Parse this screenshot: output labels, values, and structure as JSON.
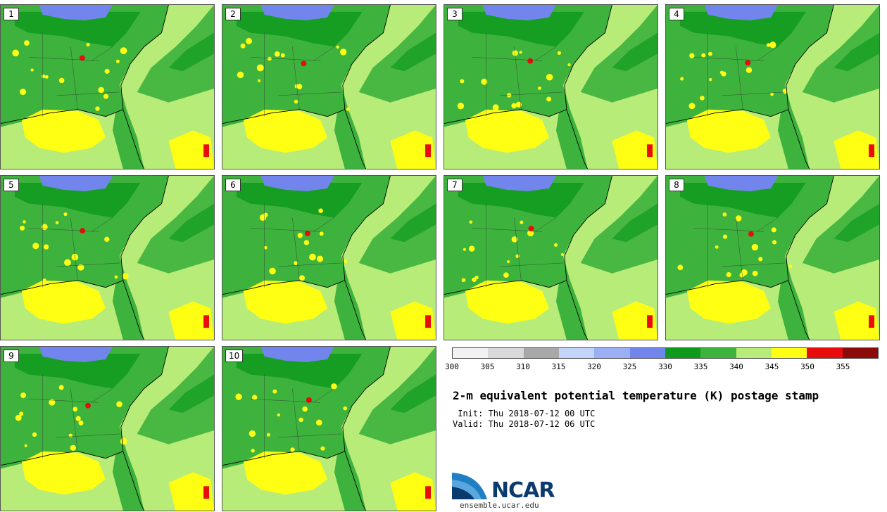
{
  "panels": [
    {
      "label": "1"
    },
    {
      "label": "2"
    },
    {
      "label": "3"
    },
    {
      "label": "4"
    },
    {
      "label": "5"
    },
    {
      "label": "6"
    },
    {
      "label": "7"
    },
    {
      "label": "8"
    },
    {
      "label": "9"
    },
    {
      "label": "10"
    }
  ],
  "colorbar": {
    "colors": [
      "#f2f2f2",
      "#d9d9d9",
      "#a8a8a8",
      "#c4d4f8",
      "#9bb0f4",
      "#7285ec",
      "#0f9a1e",
      "#3db33d",
      "#b8ec78",
      "#ffff14",
      "#e80c0c",
      "#8c0a0a"
    ],
    "ticks": [
      "300",
      "305",
      "310",
      "315",
      "320",
      "325",
      "330",
      "335",
      "340",
      "345",
      "350",
      "355"
    ]
  },
  "title": "2-m equivalent potential temperature (K) postage stamp",
  "init": " Init: Thu 2018-07-12 00 UTC",
  "valid": "Valid: Thu 2018-07-12 06 UTC",
  "logo": {
    "name": "NCAR",
    "url": "ensemble.ucar.edu"
  }
}
